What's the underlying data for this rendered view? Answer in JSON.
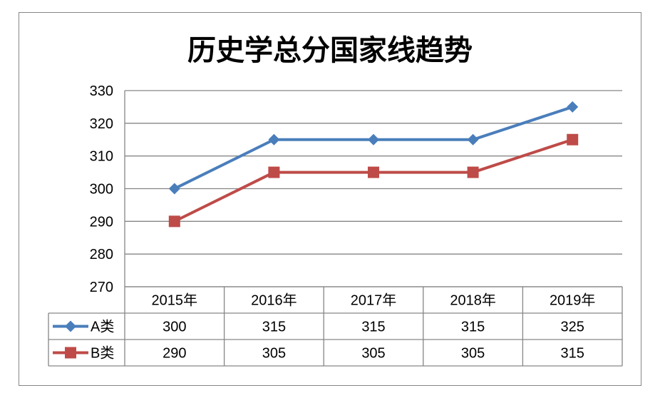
{
  "chart_data": {
    "type": "line",
    "title": "历史学总分国家线趋势",
    "categories": [
      "2015年",
      "2016年",
      "2017年",
      "2018年",
      "2019年"
    ],
    "ylim": [
      270,
      330
    ],
    "yticks": [
      270,
      280,
      290,
      300,
      310,
      320,
      330
    ],
    "grid": true,
    "legend_placement": "data-table-left",
    "series": [
      {
        "name": "A类",
        "values": [
          300,
          315,
          315,
          315,
          325
        ],
        "color": "#4a7ebb",
        "marker": "diamond"
      },
      {
        "name": "B类",
        "values": [
          290,
          305,
          305,
          305,
          315
        ],
        "color": "#be4b48",
        "marker": "square"
      }
    ]
  }
}
